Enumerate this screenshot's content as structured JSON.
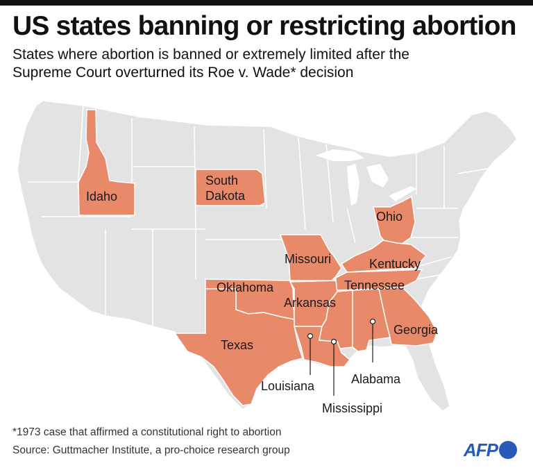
{
  "header": {
    "title": "US states banning or restricting abortion",
    "subtitle": "States where abortion is banned or extremely limited after the Supreme Court overturned its Roe v. Wade* decision"
  },
  "map": {
    "colors": {
      "restricted": "#e8896a",
      "other": "#e3e3e3",
      "border": "#ffffff"
    },
    "restricted_states": [
      {
        "id": "idaho",
        "label": "Idaho"
      },
      {
        "id": "south-dakota",
        "label_line1": "South",
        "label_line2": "Dakota"
      },
      {
        "id": "ohio",
        "label": "Ohio"
      },
      {
        "id": "missouri",
        "label": "Missouri"
      },
      {
        "id": "kentucky",
        "label": "Kentucky"
      },
      {
        "id": "oklahoma",
        "label": "Oklahoma"
      },
      {
        "id": "tennessee",
        "label": "Tennessee"
      },
      {
        "id": "arkansas",
        "label": "Arkansas"
      },
      {
        "id": "texas",
        "label": "Texas"
      },
      {
        "id": "georgia",
        "label": "Georgia"
      },
      {
        "id": "louisiana",
        "label": "Louisiana"
      },
      {
        "id": "mississippi",
        "label": "Mississippi"
      },
      {
        "id": "alabama",
        "label": "Alabama"
      }
    ]
  },
  "footer": {
    "footnote": "*1973 case that affirmed a constitutional right to abortion",
    "source": "Source: Guttmacher Institute, a pro-choice research group",
    "logo_text": "AFP"
  }
}
